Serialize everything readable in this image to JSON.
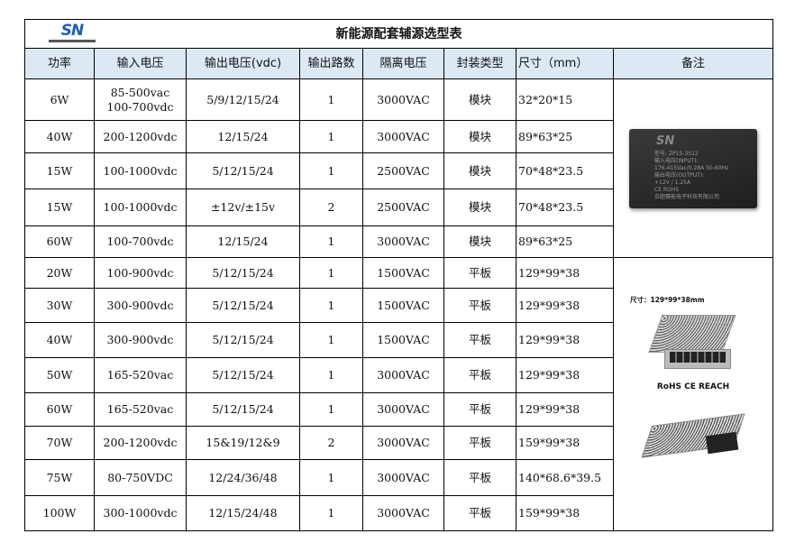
{
  "logo": {
    "text": "SN",
    "subtitle": "合肥赛能电子科技有限公司"
  },
  "title": "新能源配套辅源选型表",
  "headers": [
    "功率",
    "输入电压",
    "输出电压(vdc)",
    "输出路数",
    "隔离电压",
    "封装类型",
    "尺寸（mm）",
    "备注"
  ],
  "rows": [
    [
      "6W",
      "85-500vac\n100-700vdc",
      "5/9/12/15/24",
      "1",
      "3000VAC",
      "模块",
      "32*20*15"
    ],
    [
      "40W",
      "200-1200vdc",
      "12/15/24",
      "1",
      "3000VAC",
      "模块",
      "89*63*25"
    ],
    [
      "15W",
      "100-1000vdc",
      "5/12/15/24",
      "1",
      "2500VAC",
      "模块",
      "70*48*23.5"
    ],
    [
      "15W",
      "100-1000vdc",
      "±12v/±15v",
      "2",
      "2500VAC",
      "模块",
      "70*48*23.5"
    ],
    [
      "60W",
      "100-700vdc",
      "12/15/24",
      "1",
      "3000VAC",
      "模块",
      "89*63*25"
    ],
    [
      "20W",
      "100-900vdc",
      "5/12/15/24",
      "1",
      "1500VAC",
      "平板",
      "129*99*38"
    ],
    [
      "30W",
      "300-900vdc",
      "5/12/15/24",
      "1",
      "1500VAC",
      "平板",
      "129*99*38"
    ],
    [
      "40W",
      "300-900vdc",
      "5/12/15/24",
      "1",
      "1500VAC",
      "平板",
      "129*99*38"
    ],
    [
      "50W",
      "165-520vac",
      "5/12/15/24",
      "1",
      "3000VAC",
      "平板",
      "129*99*38"
    ],
    [
      "60W",
      "165-520vac",
      "5/12/15/24",
      "1",
      "3000VAC",
      "平板",
      "129*99*38"
    ],
    [
      "70W",
      "200-1200vdc",
      "15&19/12&9",
      "2",
      "3000VAC",
      "平板",
      "159*99*38"
    ],
    [
      "75W",
      "80-750VDC",
      "12/24/36/48",
      "1",
      "3000VAC",
      "平板",
      "140*68.6*39.5"
    ],
    [
      "100W",
      "300-1000vdc",
      "12/15/24/48",
      "1",
      "3000VAC",
      "平板",
      "159*99*38"
    ]
  ],
  "module_image": {
    "brand": "SN",
    "lines": [
      "型号: ZP15-3S12",
      "输入电压(INPUT):",
      "176-415Vac/0.28A 50-60Hz",
      "输出电压(OUTPUT):",
      "+12V / 1.25A",
      "CE ROHS",
      "合肥赛能电子科技有限公司"
    ]
  },
  "psu_image": {
    "dims": "尺寸：129*99*38mm",
    "certs": "RoHS  CE  REACH"
  }
}
